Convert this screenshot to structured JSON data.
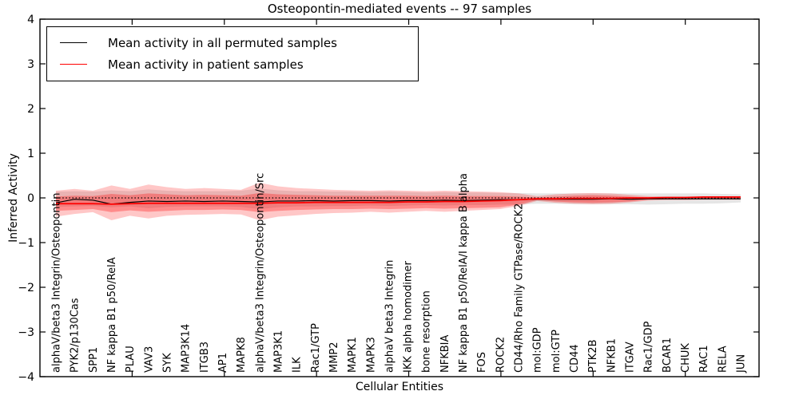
{
  "header": {
    "title": "Osteopontin-mediated events -- 97 samples"
  },
  "legend": {
    "items": [
      {
        "label": "Mean activity in all permuted samples",
        "color": "#000000"
      },
      {
        "label": "Mean activity in patient samples",
        "color": "#ff0000"
      }
    ]
  },
  "chart_data": {
    "type": "line",
    "title": "Osteopontin-mediated events -- 97 samples",
    "xlabel": "Cellular Entities",
    "ylabel": "Inferred Activity",
    "ylim": [
      -4,
      4
    ],
    "yticks": [
      -4,
      -3,
      -2,
      -1,
      0,
      1,
      2,
      3,
      4
    ],
    "grid": false,
    "zero_line_style": "dotted",
    "legend_position": "upper left",
    "categories": [
      "alphaV/beta3 Integrin/Osteopontin",
      "PYK2/p130Cas",
      "SPP1",
      "NF kappa B1 p50/RelA",
      "PLAU",
      "VAV3",
      "SYK",
      "MAP3K14",
      "ITGB3",
      "AP1",
      "MAPK8",
      "alphaV/beta3 Integrin/Osteopontin/Src",
      "MAP3K1",
      "ILK",
      "Rac1/GTP",
      "MMP2",
      "MAPK1",
      "MAPK3",
      "alphaV beta3 Integrin",
      "IKK alpha homodimer",
      "bone resorption",
      "NFKBIA",
      "NF kappa B1 p50/RelA/I kappa B alpha",
      "FOS",
      "ROCK2",
      "CD44/Rho Family GTPase/ROCK2",
      "mol:GDP",
      "mol:GTP",
      "CD44",
      "PTK2B",
      "NFKB1",
      "ITGAV",
      "Rac1/GDP",
      "BCAR1",
      "CHUK",
      "RAC1",
      "RELA",
      "JUN"
    ],
    "series": [
      {
        "name": "Mean activity in all permuted samples",
        "color": "#000000",
        "values": [
          -0.11,
          -0.03,
          -0.05,
          -0.14,
          -0.1,
          -0.07,
          -0.08,
          -0.07,
          -0.08,
          -0.07,
          -0.08,
          -0.09,
          -0.07,
          -0.07,
          -0.06,
          -0.07,
          -0.06,
          -0.06,
          -0.07,
          -0.06,
          -0.06,
          -0.05,
          -0.06,
          -0.05,
          -0.04,
          -0.04,
          -0.03,
          -0.03,
          -0.03,
          -0.03,
          -0.02,
          -0.03,
          -0.02,
          -0.02,
          -0.02,
          -0.02,
          -0.02,
          -0.02
        ]
      },
      {
        "name": "Mean activity in patient samples",
        "color": "#ff0000",
        "values": [
          -0.13,
          -0.13,
          -0.13,
          -0.14,
          -0.13,
          -0.12,
          -0.12,
          -0.12,
          -0.12,
          -0.12,
          -0.12,
          -0.12,
          -0.11,
          -0.11,
          -0.1,
          -0.1,
          -0.1,
          -0.1,
          -0.1,
          -0.09,
          -0.09,
          -0.08,
          -0.08,
          -0.07,
          -0.06,
          -0.04,
          -0.02,
          -0.02,
          -0.01,
          -0.01,
          -0.01,
          0.0,
          0.0,
          0.01,
          0.01,
          0.02,
          0.02,
          0.02
        ]
      }
    ],
    "bands": [
      {
        "name": "permuted-samples-range",
        "color": "#cccccc",
        "opacity": 0.5,
        "upper": [
          0.14,
          0.15,
          0.14,
          0.17,
          0.15,
          0.19,
          0.16,
          0.15,
          0.15,
          0.15,
          0.16,
          0.21,
          0.17,
          0.15,
          0.15,
          0.14,
          0.14,
          0.13,
          0.14,
          0.13,
          0.12,
          0.13,
          0.12,
          0.12,
          0.11,
          0.11,
          0.1,
          0.1,
          0.1,
          0.1,
          0.1,
          0.1,
          0.1,
          0.1,
          0.1,
          0.1,
          0.09,
          0.08
        ],
        "lower": [
          -0.2,
          -0.19,
          -0.18,
          -0.21,
          -0.19,
          -0.23,
          -0.2,
          -0.19,
          -0.19,
          -0.19,
          -0.2,
          -0.25,
          -0.21,
          -0.19,
          -0.19,
          -0.18,
          -0.18,
          -0.17,
          -0.18,
          -0.17,
          -0.16,
          -0.17,
          -0.16,
          -0.16,
          -0.15,
          -0.15,
          -0.13,
          -0.13,
          -0.14,
          -0.14,
          -0.14,
          -0.14,
          -0.15,
          -0.14,
          -0.13,
          -0.13,
          -0.12,
          -0.1
        ]
      },
      {
        "name": "patient-samples-outer-band",
        "color": "#ff0000",
        "opacity": 0.22,
        "upper": [
          0.16,
          0.2,
          0.16,
          0.28,
          0.2,
          0.3,
          0.24,
          0.2,
          0.22,
          0.2,
          0.18,
          0.34,
          0.26,
          0.22,
          0.2,
          0.18,
          0.17,
          0.16,
          0.17,
          0.16,
          0.15,
          0.16,
          0.15,
          0.14,
          0.13,
          0.1,
          0.04,
          0.08,
          0.1,
          0.11,
          0.1,
          0.07,
          0.04,
          0.03,
          0.03,
          0.03,
          0.03,
          0.03
        ],
        "lower": [
          -0.42,
          -0.36,
          -0.32,
          -0.5,
          -0.4,
          -0.46,
          -0.4,
          -0.38,
          -0.37,
          -0.36,
          -0.37,
          -0.5,
          -0.42,
          -0.39,
          -0.36,
          -0.34,
          -0.33,
          -0.31,
          -0.33,
          -0.31,
          -0.29,
          -0.31,
          -0.29,
          -0.27,
          -0.25,
          -0.18,
          -0.07,
          -0.11,
          -0.13,
          -0.14,
          -0.13,
          -0.1,
          -0.06,
          -0.05,
          -0.05,
          -0.04,
          -0.04,
          -0.04
        ]
      },
      {
        "name": "patient-samples-inner-band",
        "color": "#ff0000",
        "opacity": 0.3,
        "upper": [
          0.03,
          0.05,
          0.04,
          0.09,
          0.06,
          0.1,
          0.08,
          0.06,
          0.07,
          0.06,
          0.05,
          0.11,
          0.08,
          0.07,
          0.06,
          0.05,
          0.05,
          0.05,
          0.05,
          0.05,
          0.04,
          0.05,
          0.04,
          0.04,
          0.04,
          0.03,
          0.01,
          0.03,
          0.05,
          0.06,
          0.05,
          0.03,
          0.01,
          0.01,
          0.01,
          0.01,
          0.01,
          0.01
        ],
        "lower": [
          -0.29,
          -0.27,
          -0.25,
          -0.32,
          -0.28,
          -0.31,
          -0.29,
          -0.27,
          -0.27,
          -0.26,
          -0.27,
          -0.32,
          -0.29,
          -0.27,
          -0.26,
          -0.25,
          -0.25,
          -0.24,
          -0.25,
          -0.24,
          -0.23,
          -0.24,
          -0.23,
          -0.22,
          -0.21,
          -0.15,
          -0.05,
          -0.08,
          -0.1,
          -0.11,
          -0.1,
          -0.08,
          -0.04,
          -0.03,
          -0.03,
          -0.03,
          -0.03,
          -0.03
        ]
      }
    ]
  }
}
